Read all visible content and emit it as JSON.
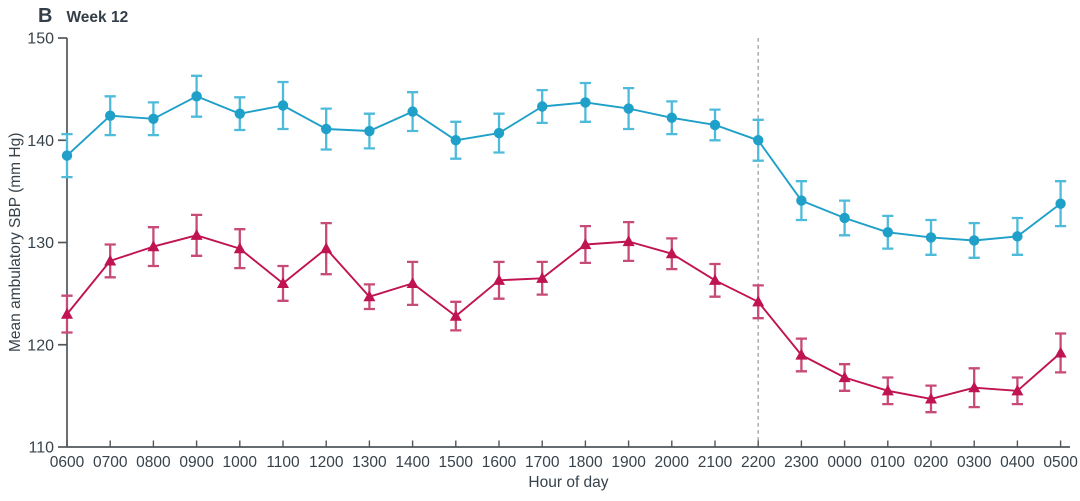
{
  "panel": {
    "label": "B",
    "title": "Week 12"
  },
  "chart_data": {
    "type": "line",
    "panel_label": "B",
    "title": "Week 12",
    "xlabel": "Hour of day",
    "ylabel": "Mean ambulatory SBP (mm Hg)",
    "ylim": [
      110,
      150
    ],
    "yticks": [
      110,
      120,
      130,
      140,
      150
    ],
    "grid": "off",
    "legend": "none",
    "categories": [
      "0600",
      "0700",
      "0800",
      "0900",
      "1000",
      "1100",
      "1200",
      "1300",
      "1400",
      "1500",
      "1600",
      "1700",
      "1800",
      "1900",
      "2000",
      "2100",
      "2200",
      "2300",
      "0000",
      "0100",
      "0200",
      "0300",
      "0400",
      "0500"
    ],
    "reference_line": {
      "at_category": "2200",
      "style": "dashed",
      "color": "#a3aeb4"
    },
    "series": [
      {
        "name": "upper-series-circles",
        "marker": "circle",
        "color": "#1fa0c8",
        "error_color": "#4fbbda",
        "values": [
          138.5,
          142.4,
          142.1,
          144.3,
          142.6,
          143.4,
          141.1,
          140.9,
          142.8,
          140.0,
          140.7,
          143.3,
          143.7,
          143.1,
          142.2,
          141.5,
          140.0,
          134.1,
          132.4,
          131.0,
          130.5,
          130.2,
          130.6,
          133.8
        ],
        "errors": [
          2.1,
          1.9,
          1.6,
          2.0,
          1.6,
          2.3,
          2.0,
          1.7,
          1.9,
          1.8,
          1.9,
          1.6,
          1.9,
          2.0,
          1.6,
          1.5,
          2.0,
          1.9,
          1.7,
          1.6,
          1.7,
          1.7,
          1.8,
          2.2
        ]
      },
      {
        "name": "lower-series-triangles",
        "marker": "triangle",
        "color": "#c01351",
        "error_color": "#c74b78",
        "values": [
          123.0,
          128.2,
          129.6,
          130.7,
          129.4,
          126.0,
          129.4,
          124.7,
          126.0,
          122.8,
          126.3,
          126.5,
          129.8,
          130.1,
          128.9,
          126.3,
          124.2,
          119.0,
          116.8,
          115.5,
          114.7,
          115.8,
          115.5,
          119.2
        ],
        "errors": [
          1.8,
          1.6,
          1.9,
          2.0,
          1.9,
          1.7,
          2.5,
          1.2,
          2.1,
          1.4,
          1.8,
          1.6,
          1.8,
          1.9,
          1.5,
          1.6,
          1.6,
          1.6,
          1.3,
          1.3,
          1.3,
          1.9,
          1.3,
          1.9
        ]
      }
    ],
    "axis_color": "#51565b",
    "text_color": "#37424b"
  }
}
